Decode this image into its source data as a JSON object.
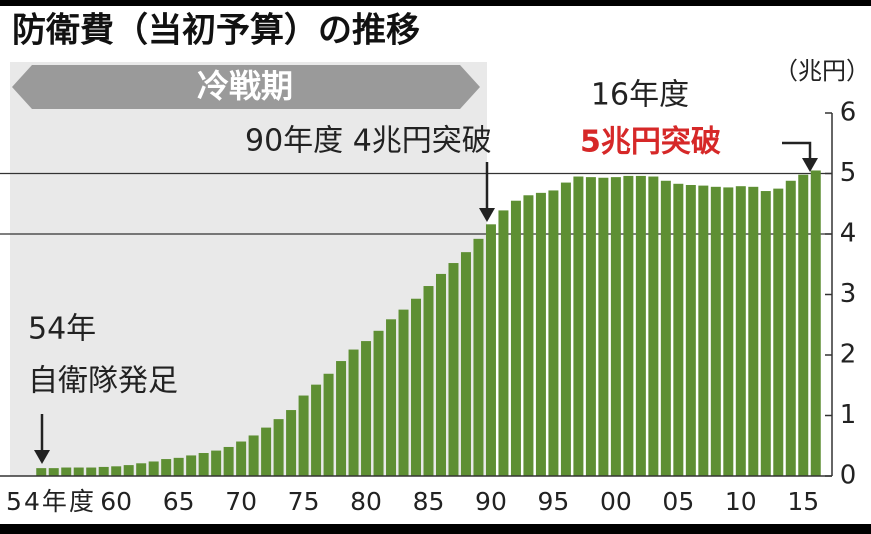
{
  "chart_data": {
    "type": "bar",
    "title": "防衛費（当初予算）の推移",
    "y_axis_label": "（兆円）",
    "period_label": "冷戦期",
    "annotations": {
      "cold_war_end": "90年度 4兆円突破",
      "latest_year": "16年度",
      "latest_note": "5兆円突破",
      "start_year": "54年",
      "start_note": "自衛隊発足"
    },
    "categories": [
      "54年度",
      null,
      null,
      null,
      null,
      null,
      "60",
      null,
      null,
      null,
      null,
      "65",
      null,
      null,
      null,
      null,
      "70",
      null,
      null,
      null,
      null,
      "75",
      null,
      null,
      null,
      null,
      "80",
      null,
      null,
      null,
      null,
      "85",
      null,
      null,
      null,
      null,
      "90",
      null,
      null,
      null,
      null,
      "95",
      null,
      null,
      null,
      null,
      "00",
      null,
      null,
      null,
      null,
      "05",
      null,
      null,
      null,
      null,
      "10",
      null,
      null,
      null,
      null,
      "15",
      null
    ],
    "values": [
      0.13,
      0.13,
      0.14,
      0.14,
      0.14,
      0.15,
      0.16,
      0.18,
      0.21,
      0.24,
      0.28,
      0.3,
      0.34,
      0.38,
      0.42,
      0.48,
      0.57,
      0.67,
      0.8,
      0.94,
      1.09,
      1.33,
      1.51,
      1.69,
      1.9,
      2.09,
      2.23,
      2.4,
      2.59,
      2.75,
      2.93,
      3.14,
      3.34,
      3.52,
      3.7,
      3.92,
      4.16,
      4.39,
      4.55,
      4.64,
      4.68,
      4.72,
      4.85,
      4.95,
      4.94,
      4.93,
      4.94,
      4.96,
      4.96,
      4.95,
      4.88,
      4.83,
      4.81,
      4.8,
      4.78,
      4.77,
      4.79,
      4.78,
      4.71,
      4.75,
      4.88,
      4.98,
      5.05
    ],
    "color": "#5e8f33",
    "highlight_color": "#d62828",
    "ylim": [
      0,
      6
    ],
    "yticks": [
      0,
      1,
      2,
      3,
      4,
      5,
      6
    ],
    "grid_lines": [
      4,
      5
    ],
    "y_axis_side": "right"
  }
}
